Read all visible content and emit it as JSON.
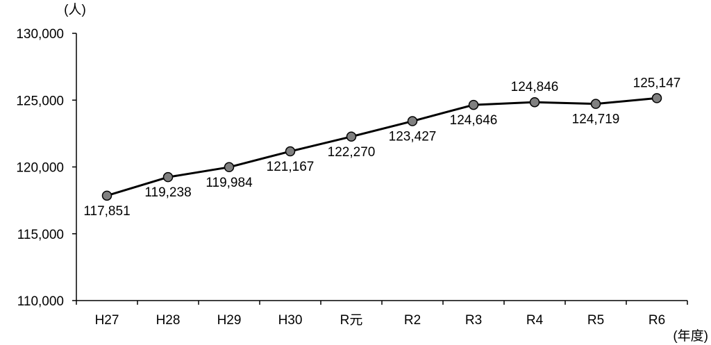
{
  "chart_data": {
    "type": "line",
    "title": "",
    "ylabel": "(人)",
    "xlabel": "(年度)",
    "ylim": [
      110000,
      130000
    ],
    "y_ticks": [
      110000,
      115000,
      120000,
      125000,
      130000
    ],
    "y_tick_labels": [
      "110,000",
      "115,000",
      "120,000",
      "125,000",
      "130,000"
    ],
    "categories": [
      "H27",
      "H28",
      "H29",
      "H30",
      "R元",
      "R2",
      "R3",
      "R4",
      "R5",
      "R6"
    ],
    "values": [
      117851,
      119238,
      119984,
      121167,
      122270,
      123427,
      124646,
      124846,
      124719,
      125147
    ],
    "data_labels": [
      "117,851",
      "119,238",
      "119,984",
      "121,167",
      "122,270",
      "123,427",
      "124,646",
      "124,846",
      "124,719",
      "125,147"
    ],
    "data_label_positions": [
      "below",
      "below",
      "below",
      "below",
      "below",
      "below",
      "below",
      "above",
      "below",
      "above"
    ],
    "grid": false,
    "legend": "none",
    "colors": {
      "line": "#000000",
      "marker_fill": "#808080",
      "marker_stroke": "#000000",
      "axis": "#000000"
    }
  }
}
